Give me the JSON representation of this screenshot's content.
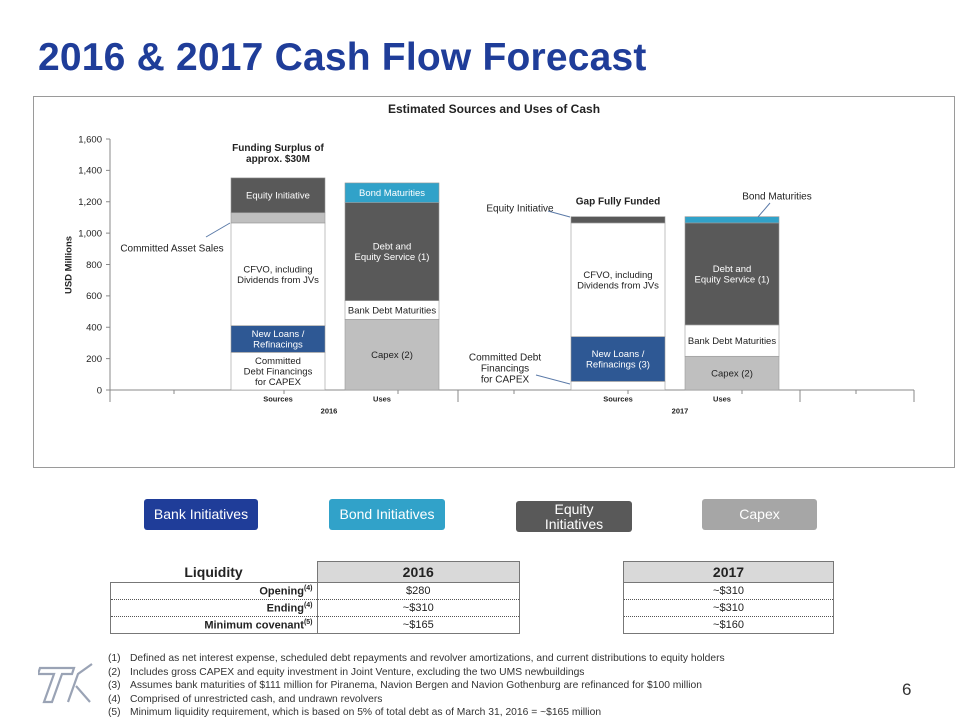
{
  "title": "2016 & 2017 Cash Flow Forecast",
  "chart_data": {
    "type": "bar",
    "title": "Estimated Sources and Uses of Cash",
    "ylabel": "USD Millions",
    "ylim": [
      0,
      1600
    ],
    "yticks": [
      "0",
      "200",
      "400",
      "600",
      "800",
      "1,000",
      "1,200",
      "1,400",
      "1,600"
    ],
    "categories": [
      "Sources",
      "Uses",
      "Sources",
      "Uses"
    ],
    "groups": [
      "2016",
      "2016",
      "2017",
      "2017"
    ],
    "group_labels": [
      "2016",
      "2017"
    ],
    "stacks": [
      [
        {
          "name": "Committed Debt Financings for CAPEX",
          "label": "Committed\nDebt Financings\nfor CAPEX",
          "value": 240,
          "color": "#ffffff"
        },
        {
          "name": "New Loans / Refinacings",
          "label": "New Loans /\nRefinacings",
          "value": 170,
          "color": "#2e5894"
        },
        {
          "name": "CFVO, including Dividends from JVs",
          "label": "CFVO, including\nDividends from JVs",
          "value": 655,
          "color": "#ffffff"
        },
        {
          "name": "Committed Asset Sales",
          "label": "",
          "value": 65,
          "color": "#bfbfbf"
        },
        {
          "name": "Equity Initiative",
          "label": "Equity Initiative",
          "value": 222,
          "color": "#595959"
        }
      ],
      [
        {
          "name": "Capex (2)",
          "label": "Capex (2)",
          "value": 450,
          "color": "#bfbfbf"
        },
        {
          "name": "Bank Debt Maturities",
          "label": "Bank Debt Maturities",
          "value": 120,
          "color": "#ffffff"
        },
        {
          "name": "Debt and Equity Service (1)",
          "label": "Debt and\nEquity Service (1)",
          "value": 625,
          "color": "#595959"
        },
        {
          "name": "Bond Maturities",
          "label": "Bond Maturities",
          "value": 125,
          "color": "#31a2c9"
        }
      ],
      [
        {
          "name": "Committed Debt Financings for CAPEX",
          "label": "",
          "value": 55,
          "color": "#ffffff"
        },
        {
          "name": "New Loans / Refinacings (3)",
          "label": "New Loans /\nRefinacings (3)",
          "value": 285,
          "color": "#2e5894"
        },
        {
          "name": "CFVO, including Dividends from JVs",
          "label": "CFVO, including\nDividends from JVs",
          "value": 725,
          "color": "#ffffff"
        },
        {
          "name": "Equity Initiative",
          "label": "",
          "value": 40,
          "color": "#595959"
        }
      ],
      [
        {
          "name": "Capex (2)",
          "label": "Capex (2)",
          "value": 215,
          "color": "#bfbfbf"
        },
        {
          "name": "Bank Debt Maturities",
          "label": "Bank Debt Maturities",
          "value": 200,
          "color": "#ffffff"
        },
        {
          "name": "Debt and Equity Service (1)",
          "label": "Debt and\nEquity Service (1)",
          "value": 650,
          "color": "#595959"
        },
        {
          "name": "Bond Maturities",
          "label": "",
          "value": 40,
          "color": "#31a2c9"
        }
      ]
    ],
    "annotations": {
      "funding_surplus": "Funding Surplus of\napprox. $30M",
      "gap_fully_funded": "Gap Fully Funded",
      "committed_asset_sales": "Committed Asset Sales",
      "equity_initiative_2017": "Equity Initiative",
      "bond_maturities_2017": "Bond Maturities",
      "committed_debt_2017": "Committed Debt\nFinancings\nfor CAPEX"
    }
  },
  "legend": [
    {
      "label": "Bank Initiatives",
      "color": "#1f3d99"
    },
    {
      "label": "Bond Initiatives",
      "color": "#31a2c9"
    },
    {
      "label": "Equity Initiatives",
      "color": "#595959"
    },
    {
      "label": "Capex",
      "color": "#a6a6a6"
    }
  ],
  "liquidity": {
    "header": "Liquidity",
    "col_2016": "2016",
    "col_2017": "2017",
    "rows": [
      {
        "label": "Opening",
        "sup": "(4)",
        "v2016": "$280",
        "v2017": "~$310"
      },
      {
        "label": "Ending",
        "sup": "(4)",
        "v2016": "~$310",
        "v2017": "~$310"
      },
      {
        "label": "Minimum covenant",
        "sup": "(5)",
        "v2016": "~$165",
        "v2017": "~$160"
      }
    ]
  },
  "footnotes": [
    {
      "num": "(1)",
      "text": "Defined as net interest expense, scheduled debt repayments and revolver amortizations, and current distributions to equity holders"
    },
    {
      "num": "(2)",
      "text": "Includes gross CAPEX and equity investment in Joint Venture, excluding the two UMS newbuildings"
    },
    {
      "num": "(3)",
      "text": "Assumes bank maturities of $111 million for Piranema, Navion Bergen and Navion Gothenburg are refinanced for $100 million"
    },
    {
      "num": "(4)",
      "text": "Comprised of unrestricted cash, and undrawn revolvers"
    },
    {
      "num": "(5)",
      "text": "Minimum liquidity requirement, which is based on 5% of total debt as of March 31, 2016 = ~$165 million"
    }
  ],
  "page_number": "6"
}
